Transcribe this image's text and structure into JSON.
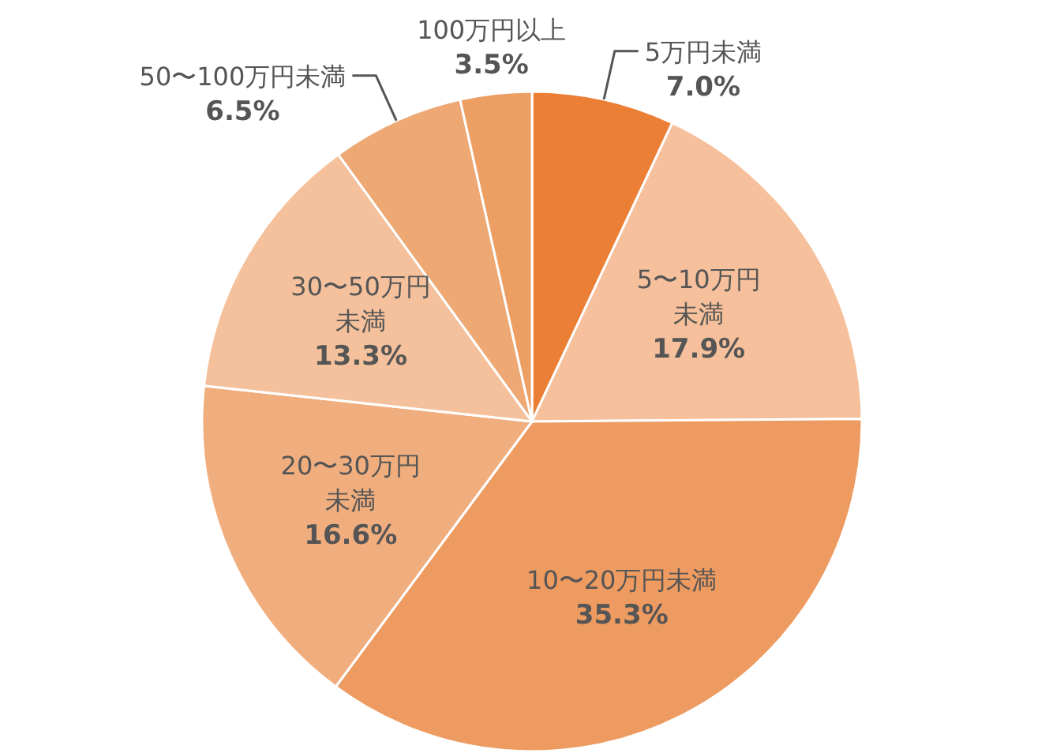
{
  "chart_data": {
    "type": "pie",
    "categories": [
      "5万円未満",
      "5〜10万円未満",
      "10〜20万円未満",
      "20〜30万円未満",
      "30〜50万円未満",
      "50〜100万円未満",
      "100万円以上"
    ],
    "values": [
      7.0,
      17.9,
      35.3,
      16.6,
      13.3,
      6.5,
      3.5
    ],
    "value_labels": [
      "7.0%",
      "17.9%",
      "35.3%",
      "16.6%",
      "13.3%",
      "6.5%",
      "3.5%"
    ],
    "colors": [
      "#eb7f35",
      "#f5c09b",
      "#ed9b60",
      "#f0ae7e",
      "#f5c19c",
      "#eda874",
      "#ed9e63"
    ]
  }
}
